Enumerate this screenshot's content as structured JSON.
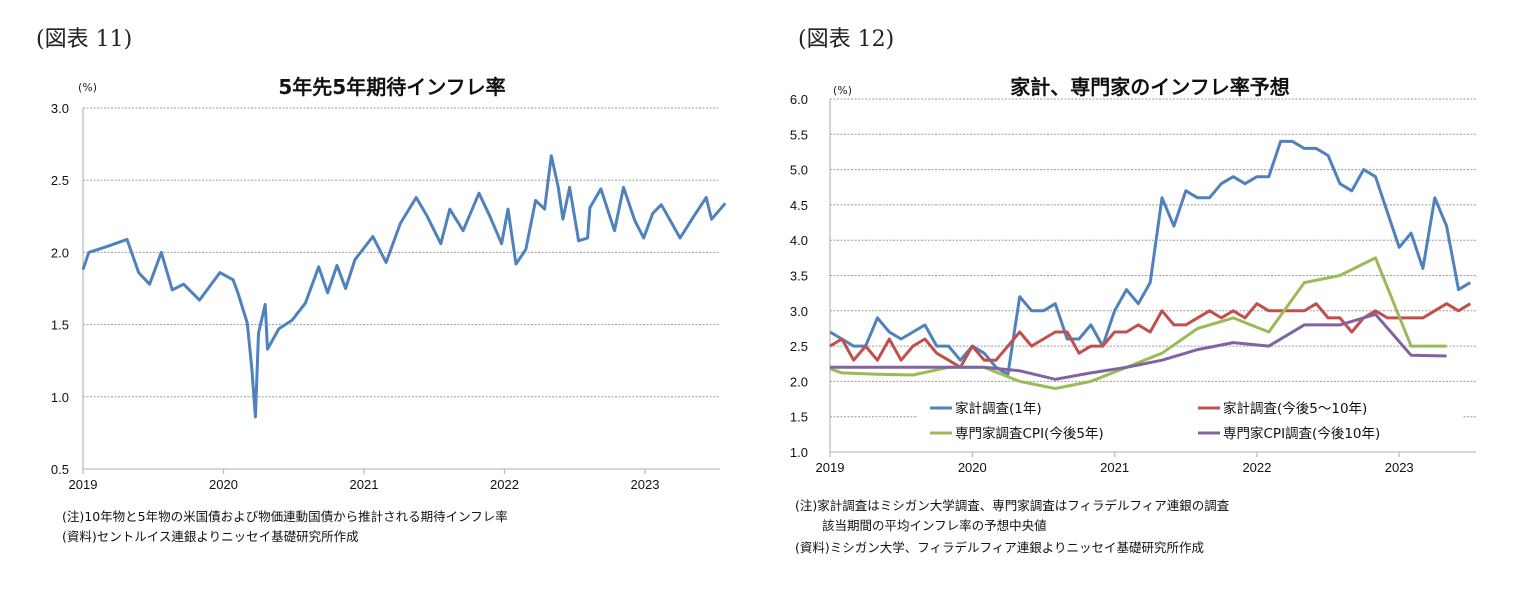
{
  "chart_data": [
    {
      "type": "line",
      "figure_label": "(図表 11)",
      "title": "5年先5年期待インフレ率",
      "ylabel": "(%)",
      "ylim": [
        0.5,
        3.0
      ],
      "yticks": [
        "3.0",
        "2.5",
        "2.0",
        "1.5",
        "1.0",
        "0.5"
      ],
      "xticks": [
        "2019",
        "2020",
        "2021",
        "2022",
        "2023"
      ],
      "grid": true,
      "notes": [
        "(注)10年物と5年物の米国債および物価連動国債から推計される期待インフレ率",
        "(資料)セントルイス連銀よりニッセイ基礎研究所作成"
      ],
      "series": [
        {
          "color": "#4f81bd",
          "x": [
            "2019-01-01",
            "2019-01-16",
            "2019-03-02",
            "2019-04-24",
            "2019-05-24",
            "2019-06-22",
            "2019-07-22",
            "2019-08-20",
            "2019-09-19",
            "2019-10-30",
            "2019-12-22",
            "2020-01-26",
            "2020-02-08",
            "2020-03-02",
            "2020-03-14",
            "2020-03-23",
            "2020-03-31",
            "2020-04-18",
            "2020-04-24",
            "2020-05-23",
            "2020-06-27",
            "2020-08-01",
            "2020-09-05",
            "2020-09-28",
            "2020-10-22",
            "2020-11-14",
            "2020-12-08",
            "2021-01-24",
            "2021-02-28",
            "2021-04-04",
            "2021-05-15",
            "2021-06-13",
            "2021-07-18",
            "2021-08-11",
            "2021-09-15",
            "2021-10-26",
            "2021-11-24",
            "2021-12-24",
            "2022-01-10",
            "2022-01-31",
            "2022-02-26",
            "2022-03-21",
            "2022-04-14",
            "2022-05-01",
            "2022-05-19",
            "2022-05-31",
            "2022-06-18",
            "2022-07-11",
            "2022-08-04",
            "2022-08-10",
            "2022-09-08",
            "2022-10-13",
            "2022-11-06",
            "2022-12-05",
            "2022-12-28",
            "2023-01-21",
            "2023-02-13",
            "2023-04-01",
            "2023-05-06",
            "2023-06-08",
            "2023-06-22",
            "2023-07-27"
          ],
          "values": [
            1.88,
            2.0,
            2.04,
            2.09,
            1.86,
            1.78,
            2.0,
            1.74,
            1.78,
            1.67,
            1.86,
            1.81,
            1.72,
            1.51,
            1.19,
            0.86,
            1.44,
            1.64,
            1.33,
            1.47,
            1.53,
            1.65,
            1.9,
            1.72,
            1.91,
            1.75,
            1.95,
            2.11,
            1.93,
            2.2,
            2.38,
            2.25,
            2.06,
            2.3,
            2.15,
            2.41,
            2.25,
            2.06,
            2.3,
            1.92,
            2.02,
            2.36,
            2.3,
            2.67,
            2.45,
            2.23,
            2.45,
            2.08,
            2.1,
            2.31,
            2.44,
            2.15,
            2.45,
            2.22,
            2.1,
            2.27,
            2.33,
            2.1,
            2.25,
            2.38,
            2.23,
            2.34
          ]
        }
      ]
    },
    {
      "type": "line",
      "figure_label": "(図表 12)",
      "title": "家計、専門家のインフレ率予想",
      "ylabel": "(%)",
      "ylim": [
        1.0,
        6.0
      ],
      "yticks": [
        "6.0",
        "5.5",
        "5.0",
        "4.5",
        "4.0",
        "3.5",
        "3.0",
        "2.5",
        "2.0",
        "1.5",
        "1.0"
      ],
      "xticks": [
        "2019",
        "2020",
        "2021",
        "2022",
        "2023"
      ],
      "grid": true,
      "legend": "inside-bottom",
      "notes": [
        "(注)家計調査はミシガン大学調査、専門家調査はフィラデルフィア連銀の調査",
        "該当期間の平均インフレ率の予想中央値",
        "(資料)ミシガン大学、フィラデルフィア連銀よりニッセイ基礎研究所作成"
      ],
      "monthly_x": [
        "2019-01",
        "2019-02",
        "2019-03",
        "2019-04",
        "2019-05",
        "2019-06",
        "2019-07",
        "2019-08",
        "2019-09",
        "2019-10",
        "2019-11",
        "2019-12",
        "2020-01",
        "2020-02",
        "2020-03",
        "2020-04",
        "2020-05",
        "2020-06",
        "2020-07",
        "2020-08",
        "2020-09",
        "2020-10",
        "2020-11",
        "2020-12",
        "2021-01",
        "2021-02",
        "2021-03",
        "2021-04",
        "2021-05",
        "2021-06",
        "2021-07",
        "2021-08",
        "2021-09",
        "2021-10",
        "2021-11",
        "2021-12",
        "2022-01",
        "2022-02",
        "2022-03",
        "2022-04",
        "2022-05",
        "2022-06",
        "2022-07",
        "2022-08",
        "2022-09",
        "2022-10",
        "2022-11",
        "2022-12",
        "2023-01",
        "2023-02",
        "2023-03",
        "2023-04",
        "2023-05",
        "2023-06",
        "2023-07"
      ],
      "series": [
        {
          "name": "家計調査(1年)",
          "color": "#4f81bd",
          "values": [
            2.7,
            2.6,
            2.5,
            2.5,
            2.9,
            2.7,
            2.6,
            2.7,
            2.8,
            2.5,
            2.5,
            2.3,
            2.5,
            2.4,
            2.2,
            2.1,
            3.2,
            3.0,
            3.0,
            3.1,
            2.6,
            2.6,
            2.8,
            2.5,
            3.0,
            3.3,
            3.1,
            3.4,
            4.6,
            4.2,
            4.7,
            4.6,
            4.6,
            4.8,
            4.9,
            4.8,
            4.9,
            4.9,
            5.4,
            5.4,
            5.3,
            5.3,
            5.2,
            4.8,
            4.7,
            5.0,
            4.9,
            4.4,
            3.9,
            4.1,
            3.6,
            4.6,
            4.2,
            3.3,
            3.4
          ]
        },
        {
          "name": "家計調査(今後5～10年)",
          "color": "#c0504d",
          "values": [
            2.5,
            2.6,
            2.3,
            2.5,
            2.3,
            2.6,
            2.3,
            2.5,
            2.6,
            2.4,
            2.3,
            2.2,
            2.5,
            2.3,
            2.3,
            2.5,
            2.7,
            2.5,
            2.6,
            2.7,
            2.7,
            2.4,
            2.5,
            2.5,
            2.7,
            2.7,
            2.8,
            2.7,
            3.0,
            2.8,
            2.8,
            2.9,
            3.0,
            2.9,
            3.0,
            2.9,
            3.1,
            3.0,
            3.0,
            3.0,
            3.0,
            3.1,
            2.9,
            2.9,
            2.7,
            2.9,
            3.0,
            2.9,
            2.9,
            2.9,
            2.9,
            3.0,
            3.1,
            3.0,
            3.1
          ]
        },
        {
          "name": "専門家調査CPI(今後5年)",
          "color": "#9bbb59",
          "x": [
            "2019-01",
            "2019-02",
            "2019-05",
            "2019-08",
            "2019-11",
            "2020-02",
            "2020-05",
            "2020-08",
            "2020-11",
            "2021-02",
            "2021-05",
            "2021-08",
            "2021-11",
            "2022-02",
            "2022-05",
            "2022-08",
            "2022-11",
            "2023-02",
            "2023-05"
          ],
          "values": [
            2.18,
            2.12,
            2.1,
            2.09,
            2.2,
            2.2,
            2.0,
            1.9,
            2.0,
            2.2,
            2.4,
            2.75,
            2.9,
            2.7,
            3.4,
            3.5,
            3.75,
            2.5,
            2.5
          ]
        },
        {
          "name": "専門家CPI調査(今後10年)",
          "color": "#8064a2",
          "x": [
            "2019-01",
            "2019-02",
            "2019-05",
            "2019-08",
            "2019-11",
            "2020-02",
            "2020-05",
            "2020-08",
            "2020-11",
            "2021-02",
            "2021-05",
            "2021-08",
            "2021-11",
            "2022-02",
            "2022-05",
            "2022-08",
            "2022-11",
            "2023-02",
            "2023-05"
          ],
          "values": [
            2.2,
            2.2,
            2.2,
            2.2,
            2.2,
            2.2,
            2.15,
            2.03,
            2.12,
            2.2,
            2.3,
            2.45,
            2.55,
            2.5,
            2.8,
            2.8,
            2.95,
            2.37,
            2.36
          ]
        }
      ]
    }
  ]
}
